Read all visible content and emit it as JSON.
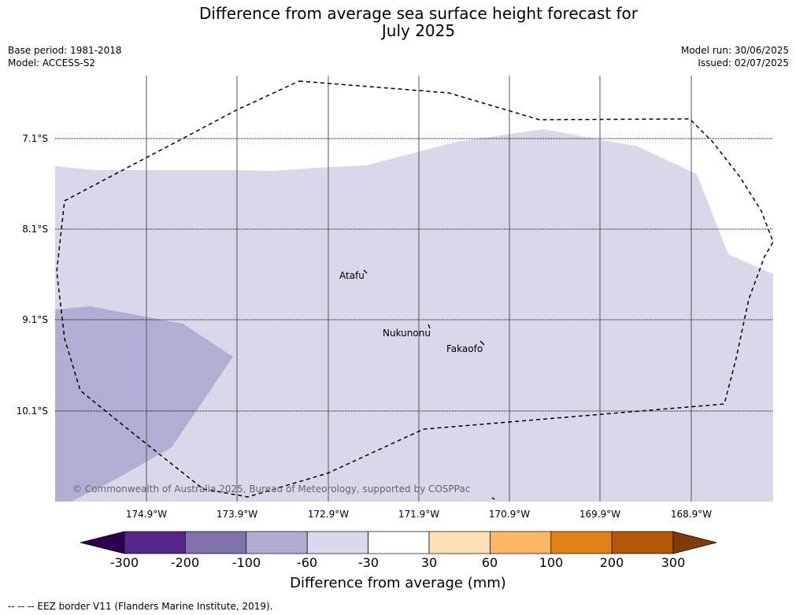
{
  "header": {
    "title_line1": "Difference from average sea surface height forecast for",
    "title_line2": "July 2025",
    "base_period": "Base period: 1981-2018",
    "model": "Model: ACCESS-S2",
    "model_run": "Model run: 30/06/2025",
    "issued": "Issued: 02/07/2025"
  },
  "map": {
    "lat_labels": [
      "7.1°S",
      "8.1°S",
      "9.1°S",
      "10.1°S"
    ],
    "lon_labels": [
      "174.9°W",
      "173.9°W",
      "172.9°W",
      "171.9°W",
      "170.9°W",
      "169.9°W",
      "168.9°W"
    ],
    "places": [
      "Atafu",
      "Nukunonu",
      "Fakaofo"
    ],
    "copyright": "© Commonwealth of Australia 2025, Bureau of Meteorology, supported by COSPPac",
    "fill_colors": {
      "band_minus60_minus30": "#d8d8ea",
      "band_minus100_minus60": "#b1aed3"
    }
  },
  "colorbar": {
    "ticks": [
      "-300",
      "-200",
      "-100",
      "-60",
      "-30",
      "30",
      "60",
      "100",
      "200",
      "300"
    ],
    "colors": [
      "#2d004b",
      "#542788",
      "#8073ac",
      "#b2abd2",
      "#d8daeb",
      "#ffffff",
      "#fee0b6",
      "#fdb863",
      "#e08214",
      "#b35806",
      "#7f3b08"
    ],
    "label": "Difference from average (mm)"
  },
  "footnote": "--  --  -- EEZ border V11 (Flanders Marine Institute, 2019)."
}
